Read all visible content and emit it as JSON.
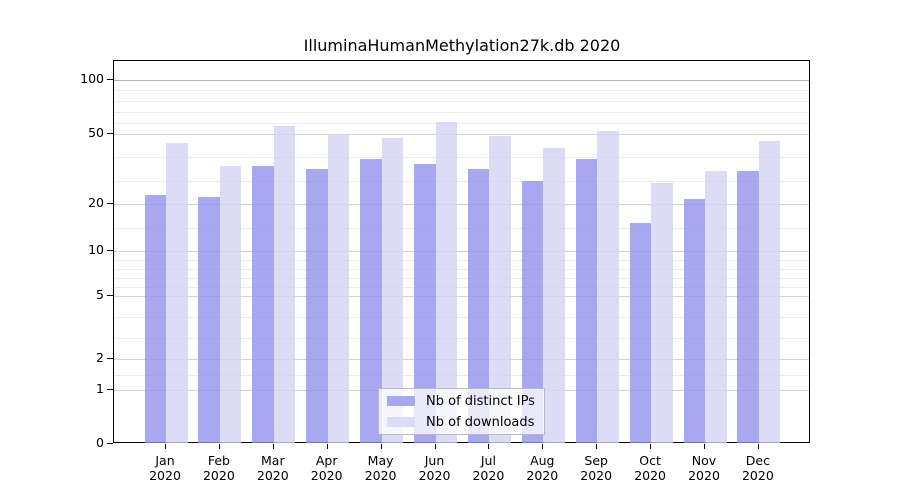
{
  "title": "IlluminaHumanMethylation27k.db 2020",
  "chart_data": {
    "type": "bar",
    "title": "IlluminaHumanMethylation27k.db 2020",
    "categories": [
      {
        "month": "Jan",
        "year": "2020"
      },
      {
        "month": "Feb",
        "year": "2020"
      },
      {
        "month": "Mar",
        "year": "2020"
      },
      {
        "month": "Apr",
        "year": "2020"
      },
      {
        "month": "May",
        "year": "2020"
      },
      {
        "month": "Jun",
        "year": "2020"
      },
      {
        "month": "Jul",
        "year": "2020"
      },
      {
        "month": "Aug",
        "year": "2020"
      },
      {
        "month": "Sep",
        "year": "2020"
      },
      {
        "month": "Oct",
        "year": "2020"
      },
      {
        "month": "Nov",
        "year": "2020"
      },
      {
        "month": "Dec",
        "year": "2020"
      }
    ],
    "series": [
      {
        "name": "Nb of distinct IPs",
        "color": "#a8a8f0",
        "values": [
          24,
          23,
          36,
          35,
          39,
          37,
          35,
          30,
          39,
          16,
          22,
          34
        ]
      },
      {
        "name": "Nb of downloads",
        "color": "#dcdcf7",
        "values": [
          46,
          36,
          57,
          50,
          48,
          61,
          49,
          44,
          52,
          29,
          34,
          47
        ]
      }
    ],
    "y_axis": {
      "ticks": [
        0,
        1,
        2,
        5,
        10,
        20,
        50,
        100
      ],
      "scale": "log-like with zero baseline"
    },
    "grid": true,
    "legend_position": "bottom-center",
    "ylim": [
      0,
      120
    ]
  }
}
